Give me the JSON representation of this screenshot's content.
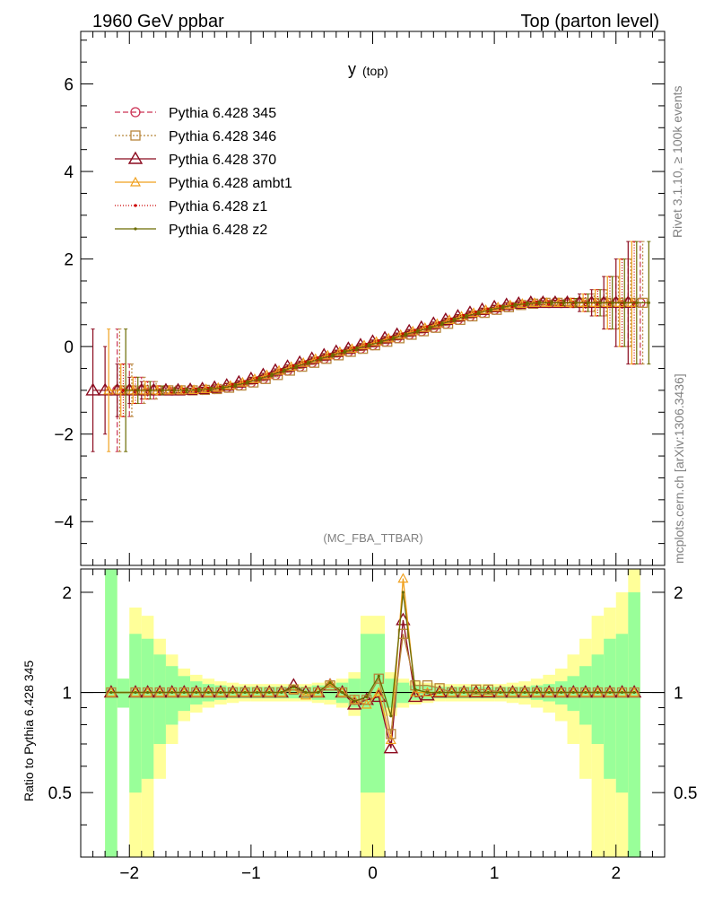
{
  "header": {
    "left": "1960 GeV ppbar",
    "right": "Top (parton level)"
  },
  "plot_title": {
    "main": "y",
    "sub": "(top)"
  },
  "side_labels": {
    "rivet": "Rivet 3.1.10, ≥ 100k events",
    "mcplots": "mcplots.cern.ch [arXiv:1306.3436]"
  },
  "analysis_tag": "(MC_FBA_TTBAR)",
  "ratio_ylabel": "Ratio to Pythia 6.428 345",
  "colors": {
    "p345": "#cc3355",
    "p346": "#b8863b",
    "p370": "#8b0a1e",
    "ambt1": "#f0a01e",
    "z1": "#cc0000",
    "z2": "#6b6b00",
    "band_green": "#99ff99",
    "band_yellow": "#ffff99"
  },
  "chart_data": [
    {
      "type": "line",
      "xlim": [
        -2.4,
        2.4
      ],
      "ylim": [
        -5,
        7.2
      ],
      "xticks": [
        -2,
        -1,
        0,
        1,
        2
      ],
      "yticks": [
        -4,
        -2,
        0,
        2,
        4,
        6
      ],
      "legend_position": "top-left",
      "x": [
        -2.25,
        -2.15,
        -2.05,
        -1.95,
        -1.85,
        -1.75,
        -1.65,
        -1.55,
        -1.45,
        -1.35,
        -1.25,
        -1.15,
        -1.05,
        -0.95,
        -0.85,
        -0.75,
        -0.65,
        -0.55,
        -0.45,
        -0.35,
        -0.25,
        -0.15,
        -0.05,
        0.05,
        0.15,
        0.25,
        0.35,
        0.45,
        0.55,
        0.65,
        0.75,
        0.85,
        0.95,
        1.05,
        1.15,
        1.25,
        1.35,
        1.45,
        1.55,
        1.65,
        1.75,
        1.85,
        1.95,
        2.05,
        2.15,
        2.25
      ],
      "series": [
        {
          "name": "Pythia 6.428 345",
          "key": "p345",
          "marker": "circle",
          "dash": "6,3",
          "x_offset": 0.1,
          "y": [
            null,
            -1.0,
            -1.0,
            -1.0,
            -1.0,
            -1.0,
            -1.0,
            -1.0,
            -0.99,
            -0.97,
            -0.94,
            -0.89,
            -0.82,
            -0.74,
            -0.65,
            -0.55,
            -0.46,
            -0.37,
            -0.28,
            -0.2,
            -0.12,
            -0.05,
            0.03,
            0.11,
            0.19,
            0.27,
            0.35,
            0.43,
            0.52,
            0.61,
            0.69,
            0.77,
            0.84,
            0.9,
            0.95,
            0.98,
            1.0,
            1.0,
            1.0,
            1.0,
            1.0,
            1.0,
            1.0,
            1.0,
            1.0,
            null
          ],
          "err": [
            null,
            1.4,
            0.6,
            0.3,
            0.2,
            0.1,
            0.06,
            0.05,
            0.04,
            0.04,
            0.04,
            0.04,
            0.04,
            0.04,
            0.04,
            0.04,
            0.04,
            0.04,
            0.04,
            0.04,
            0.04,
            0.04,
            0.04,
            0.04,
            0.04,
            0.04,
            0.04,
            0.04,
            0.04,
            0.04,
            0.04,
            0.04,
            0.04,
            0.04,
            0.04,
            0.04,
            0.04,
            0.05,
            0.06,
            0.1,
            0.2,
            0.3,
            0.6,
            1.0,
            1.4,
            null
          ]
        },
        {
          "name": "Pythia 6.428 346",
          "key": "p346",
          "marker": "square",
          "dash": "2,2",
          "x_offset": 0.12,
          "y": [
            null,
            -1.0,
            -1.0,
            -1.0,
            -1.0,
            -1.0,
            -1.0,
            -1.0,
            -0.99,
            -0.97,
            -0.94,
            -0.89,
            -0.82,
            -0.74,
            -0.65,
            -0.55,
            -0.46,
            -0.37,
            -0.28,
            -0.2,
            -0.12,
            -0.05,
            0.03,
            0.11,
            0.19,
            0.27,
            0.35,
            0.43,
            0.52,
            0.61,
            0.69,
            0.77,
            0.84,
            0.9,
            0.95,
            0.98,
            1.0,
            1.0,
            1.0,
            1.0,
            1.0,
            1.0,
            1.0,
            1.0,
            1.0,
            null
          ],
          "err": [
            null,
            1.4,
            0.6,
            0.3,
            0.2,
            0.1,
            0.06,
            0.05,
            0.04,
            0.04,
            0.04,
            0.04,
            0.04,
            0.04,
            0.04,
            0.04,
            0.04,
            0.04,
            0.04,
            0.04,
            0.04,
            0.04,
            0.04,
            0.04,
            0.04,
            0.04,
            0.04,
            0.04,
            0.04,
            0.04,
            0.04,
            0.04,
            0.04,
            0.04,
            0.04,
            0.04,
            0.04,
            0.05,
            0.06,
            0.1,
            0.2,
            0.3,
            0.6,
            1.0,
            1.4,
            null
          ]
        },
        {
          "name": "Pythia 6.428 370",
          "key": "p370",
          "marker": "triangle",
          "dash": "",
          "x_offset": 0.0,
          "y": [
            -1.0,
            -1.0,
            -1.0,
            -1.0,
            -1.0,
            -1.0,
            -1.0,
            -1.0,
            -0.99,
            -0.97,
            -0.94,
            -0.89,
            -0.82,
            -0.74,
            -0.65,
            -0.55,
            -0.46,
            -0.37,
            -0.28,
            -0.2,
            -0.12,
            -0.05,
            0.03,
            0.11,
            0.19,
            0.27,
            0.35,
            0.43,
            0.52,
            0.61,
            0.69,
            0.77,
            0.84,
            0.9,
            0.95,
            0.98,
            1.0,
            1.0,
            1.0,
            1.0,
            1.0,
            1.0,
            1.0,
            1.0,
            1.0,
            null
          ],
          "err": [
            1.4,
            1.0,
            0.6,
            0.3,
            0.2,
            0.1,
            0.06,
            0.05,
            0.04,
            0.04,
            0.04,
            0.04,
            0.04,
            0.04,
            0.04,
            0.04,
            0.04,
            0.04,
            0.04,
            0.04,
            0.04,
            0.04,
            0.04,
            0.04,
            0.04,
            0.04,
            0.04,
            0.04,
            0.04,
            0.04,
            0.04,
            0.04,
            0.04,
            0.04,
            0.04,
            0.04,
            0.04,
            0.05,
            0.06,
            0.1,
            0.2,
            0.3,
            0.6,
            1.0,
            1.4,
            null
          ]
        },
        {
          "name": "Pythia 6.428 ambt1",
          "key": "ambt1",
          "marker": "triangle-small",
          "dash": "",
          "x_offset": 0.03,
          "y": [
            null,
            -1.0,
            -1.0,
            -1.0,
            -1.0,
            -1.0,
            -1.0,
            -1.0,
            -0.99,
            -0.97,
            -0.94,
            -0.89,
            -0.82,
            -0.74,
            -0.65,
            -0.55,
            -0.46,
            -0.37,
            -0.28,
            -0.2,
            -0.12,
            -0.05,
            0.03,
            0.11,
            0.19,
            0.27,
            0.35,
            0.43,
            0.52,
            0.61,
            0.69,
            0.77,
            0.84,
            0.9,
            0.95,
            0.98,
            1.0,
            1.0,
            1.0,
            1.0,
            1.0,
            1.0,
            1.0,
            1.0,
            1.0,
            null
          ],
          "err": [
            null,
            1.4,
            0.6,
            0.3,
            0.2,
            0.1,
            0.06,
            0.05,
            0.04,
            0.04,
            0.04,
            0.04,
            0.04,
            0.04,
            0.04,
            0.04,
            0.04,
            0.04,
            0.04,
            0.04,
            0.04,
            0.04,
            0.04,
            0.04,
            0.04,
            0.04,
            0.04,
            0.04,
            0.04,
            0.04,
            0.04,
            0.04,
            0.04,
            0.04,
            0.04,
            0.04,
            0.04,
            0.05,
            0.06,
            0.1,
            0.2,
            0.3,
            0.6,
            1.0,
            1.4,
            null
          ]
        },
        {
          "name": "Pythia 6.428 z1",
          "key": "z1",
          "marker": "dot",
          "dash": "1,2",
          "x_offset": 0.05,
          "y": [
            null,
            null,
            -1.0,
            -1.0,
            -1.0,
            -1.0,
            -1.0,
            -1.0,
            -0.99,
            -0.97,
            -0.94,
            -0.89,
            -0.82,
            -0.74,
            -0.65,
            -0.55,
            -0.46,
            -0.37,
            -0.28,
            -0.2,
            -0.12,
            -0.05,
            0.03,
            0.11,
            0.19,
            0.27,
            0.35,
            0.43,
            0.52,
            0.61,
            0.69,
            0.77,
            0.84,
            0.9,
            0.95,
            0.98,
            1.0,
            1.0,
            1.0,
            1.0,
            1.0,
            1.0,
            1.0,
            1.0,
            1.0,
            null
          ],
          "err": [
            null,
            null,
            0.6,
            0.3,
            0.2,
            0.1,
            0.06,
            0.05,
            0.04,
            0.04,
            0.04,
            0.04,
            0.04,
            0.04,
            0.04,
            0.04,
            0.04,
            0.04,
            0.04,
            0.04,
            0.04,
            0.04,
            0.04,
            0.04,
            0.04,
            0.04,
            0.04,
            0.04,
            0.04,
            0.04,
            0.04,
            0.04,
            0.04,
            0.04,
            0.04,
            0.04,
            0.04,
            0.05,
            0.06,
            0.1,
            0.2,
            0.3,
            0.6,
            1.0,
            1.4,
            null
          ]
        },
        {
          "name": "Pythia 6.428 z2",
          "key": "z2",
          "marker": "dot",
          "dash": "",
          "x_offset": 0.07,
          "y": [
            null,
            null,
            -1.0,
            -1.0,
            -1.0,
            -1.0,
            -1.0,
            -1.0,
            -0.99,
            -0.97,
            -0.94,
            -0.89,
            -0.82,
            -0.74,
            -0.65,
            -0.55,
            -0.46,
            -0.37,
            -0.28,
            -0.2,
            -0.12,
            -0.05,
            0.03,
            0.11,
            0.19,
            0.27,
            0.35,
            0.43,
            0.52,
            0.61,
            0.69,
            0.77,
            0.84,
            0.9,
            0.95,
            0.98,
            1.0,
            1.0,
            1.0,
            1.0,
            1.0,
            1.0,
            1.0,
            1.0,
            1.0,
            1.0
          ],
          "err": [
            null,
            null,
            1.4,
            0.3,
            0.2,
            0.1,
            0.06,
            0.05,
            0.04,
            0.04,
            0.04,
            0.04,
            0.04,
            0.04,
            0.04,
            0.04,
            0.04,
            0.04,
            0.04,
            0.04,
            0.04,
            0.04,
            0.04,
            0.04,
            0.04,
            0.04,
            0.04,
            0.04,
            0.04,
            0.04,
            0.04,
            0.04,
            0.04,
            0.04,
            0.04,
            0.04,
            0.04,
            0.05,
            0.06,
            0.1,
            0.2,
            0.3,
            0.6,
            1.0,
            1.4,
            1.4
          ]
        }
      ]
    },
    {
      "type": "line",
      "xlim": [
        -2.4,
        2.4
      ],
      "ylim": [
        0.32,
        2.35
      ],
      "yscale": "log",
      "xticks": [
        -2,
        -1,
        0,
        1,
        2
      ],
      "yticks": [
        0.5,
        1,
        2
      ],
      "bin_edges": [
        -2.2,
        -2.1,
        -2.0,
        -1.9,
        -1.8,
        -1.7,
        -1.6,
        -1.5,
        -1.4,
        -1.3,
        -1.2,
        -1.1,
        -1.0,
        -0.9,
        -0.8,
        -0.7,
        -0.6,
        -0.5,
        -0.4,
        -0.3,
        -0.2,
        -0.1,
        0.0,
        0.1,
        0.2,
        0.3,
        0.4,
        0.5,
        0.6,
        0.7,
        0.8,
        0.9,
        1.0,
        1.1,
        1.2,
        1.3,
        1.4,
        1.5,
        1.6,
        1.7,
        1.8,
        1.9,
        2.0,
        2.1,
        2.2
      ],
      "band_green_halfwidth": [
        3.0,
        0.1,
        0.5,
        0.45,
        0.3,
        0.2,
        0.12,
        0.08,
        0.06,
        0.05,
        0.04,
        0.04,
        0.04,
        0.04,
        0.04,
        0.04,
        0.04,
        0.05,
        0.05,
        0.07,
        0.1,
        0.5,
        0.5,
        0.1,
        0.07,
        0.05,
        0.05,
        0.04,
        0.04,
        0.04,
        0.04,
        0.04,
        0.04,
        0.04,
        0.04,
        0.05,
        0.06,
        0.08,
        0.12,
        0.2,
        0.3,
        0.45,
        0.5,
        1.0
      ],
      "band_yellow_halfwidth": [
        3.0,
        0.1,
        0.8,
        0.7,
        0.45,
        0.3,
        0.18,
        0.13,
        0.1,
        0.08,
        0.07,
        0.06,
        0.06,
        0.06,
        0.06,
        0.06,
        0.06,
        0.07,
        0.08,
        0.1,
        0.15,
        0.7,
        0.7,
        0.15,
        0.1,
        0.08,
        0.07,
        0.06,
        0.06,
        0.06,
        0.06,
        0.06,
        0.06,
        0.07,
        0.08,
        0.1,
        0.13,
        0.18,
        0.3,
        0.45,
        0.7,
        0.8,
        1.0,
        1.5
      ],
      "x": [
        -2.15,
        -1.95,
        -1.85,
        -1.75,
        -1.65,
        -1.55,
        -1.45,
        -1.35,
        -1.25,
        -1.15,
        -1.05,
        -0.95,
        -0.85,
        -0.75,
        -0.65,
        -0.55,
        -0.45,
        -0.35,
        -0.25,
        -0.15,
        -0.05,
        0.05,
        0.15,
        0.25,
        0.35,
        0.45,
        0.55,
        0.65,
        0.75,
        0.85,
        0.95,
        1.05,
        1.15,
        1.25,
        1.35,
        1.45,
        1.55,
        1.65,
        1.75,
        1.85,
        1.95,
        2.05,
        2.15
      ],
      "series": [
        {
          "key": "p370",
          "marker": "triangle",
          "y": [
            1.0,
            1.0,
            1.0,
            1.0,
            1.0,
            1.0,
            1.0,
            1.0,
            1.0,
            1.0,
            1.0,
            1.0,
            1.0,
            1.0,
            1.05,
            1.0,
            1.0,
            1.05,
            1.0,
            0.92,
            0.95,
            0.97,
            0.68,
            1.65,
            0.97,
            0.98,
            1.0,
            1.0,
            1.0,
            1.0,
            1.0,
            1.0,
            1.0,
            1.0,
            1.0,
            1.0,
            1.0,
            1.0,
            1.0,
            1.0,
            1.0,
            1.0,
            1.0
          ]
        },
        {
          "key": "ambt1",
          "marker": "triangle-small",
          "y": [
            1.0,
            1.0,
            1.0,
            1.0,
            1.0,
            1.0,
            1.0,
            1.0,
            1.0,
            1.0,
            1.0,
            1.0,
            1.0,
            1.0,
            1.02,
            0.98,
            1.0,
            1.06,
            1.0,
            0.95,
            0.92,
            1.0,
            0.72,
            2.2,
            1.0,
            1.0,
            1.0,
            1.0,
            1.0,
            1.0,
            1.0,
            1.0,
            1.0,
            1.0,
            1.0,
            1.0,
            1.0,
            1.0,
            1.0,
            1.0,
            1.0,
            1.0,
            1.0
          ]
        },
        {
          "key": "p346",
          "marker": "square",
          "y": [
            1.0,
            1.0,
            1.0,
            1.0,
            1.0,
            1.0,
            1.0,
            1.0,
            1.0,
            1.0,
            1.0,
            1.0,
            1.0,
            1.0,
            1.02,
            1.0,
            1.0,
            1.05,
            1.0,
            0.95,
            0.95,
            1.1,
            0.75,
            1.5,
            1.05,
            1.05,
            1.03,
            1.0,
            1.0,
            1.02,
            1.02,
            1.0,
            1.0,
            1.0,
            1.0,
            1.0,
            1.0,
            1.0,
            1.0,
            1.0,
            1.0,
            1.0,
            1.0
          ]
        },
        {
          "key": "z2",
          "marker": "dot",
          "y": [
            1.0,
            1.0,
            1.0,
            1.0,
            1.0,
            1.0,
            1.0,
            1.0,
            1.0,
            1.0,
            1.0,
            1.0,
            1.0,
            1.0,
            1.04,
            1.0,
            1.0,
            1.07,
            1.0,
            0.94,
            0.97,
            1.12,
            0.85,
            2.0,
            1.02,
            1.0,
            1.0,
            1.0,
            1.0,
            1.0,
            1.0,
            1.0,
            1.0,
            1.0,
            1.0,
            1.0,
            1.0,
            1.0,
            1.0,
            1.0,
            1.0,
            1.0,
            1.0
          ]
        }
      ]
    }
  ]
}
